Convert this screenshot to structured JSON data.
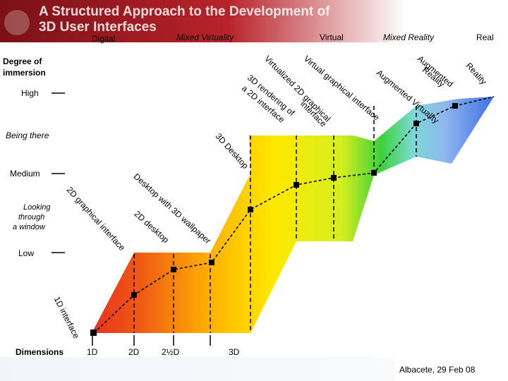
{
  "header": {
    "title_line1": "A Structured Approach to the Development of",
    "title_line2": "3D User Interfaces"
  },
  "top_scale": {
    "digital": "Digital",
    "mixed_virtuality": "Mixed Virtuality",
    "virtual": "Virtual",
    "mixed_reality": "Mixed Reality",
    "real": "Real"
  },
  "y_axis": {
    "title_line1": "Degree of",
    "title_line2": "immersion",
    "high": "High",
    "being_there": "Being there",
    "medium": "Medium",
    "looking_line1": "Looking",
    "looking_line2": "through",
    "looking_line3": "a window",
    "low": "Low"
  },
  "x_axis": {
    "title": "Dimensions",
    "d1": "1D",
    "d2": "2D",
    "d2_5": "2½D",
    "d3": "3D"
  },
  "stage_labels": {
    "one_d_interface": "1D interface",
    "two_d_graphical_interface": "2D graphical interface",
    "two_d_desktop": "2D desktop",
    "desktop_with_3d_wallpaper": "Desktop with 3D wallpaper",
    "three_d_desktop": "3D Desktop",
    "three_d_rendering": "3D rendering of",
    "a_2d_interface": "a 2D interface",
    "virtualized_2d_graphical": "Virtualized 2D graphical",
    "interface": "interface",
    "virtual_graphical_interface": "Virtual graphical interface",
    "augmented_virtuality": "Augmented Virtuality",
    "augmented": "Augmented",
    "reality": "Reality",
    "reality_end": "Reality"
  },
  "footer": {
    "location_date": "Albacete, 29 Feb 08"
  },
  "colors": {
    "header_dark": "#7a1116",
    "band_red": "#e8321e",
    "band_yellow": "#ffe800",
    "band_green": "#3bd23b",
    "band_blue": "#3f6fe6"
  }
}
